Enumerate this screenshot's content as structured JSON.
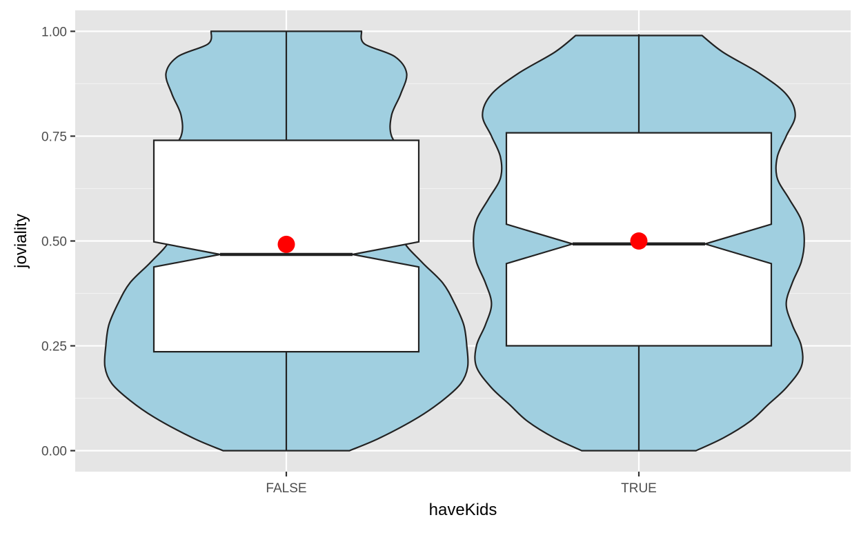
{
  "chart_data": {
    "type": "violin",
    "xlabel": "haveKids",
    "ylabel": "joviality",
    "categories": [
      "FALSE",
      "TRUE"
    ],
    "ylim": [
      -0.05,
      1.05
    ],
    "yticks": [
      0.0,
      0.25,
      0.5,
      0.75,
      1.0
    ],
    "ytick_labels": [
      "0.00",
      "0.25",
      "0.50",
      "0.75",
      "1.00"
    ],
    "grid": true,
    "colors": {
      "panel_bg": "#e5e5e5",
      "grid_major": "#ffffff",
      "grid_minor": "#f2f2f2",
      "violin_fill": "#a0cfe0",
      "outline": "#222222",
      "box_fill": "#ffffff",
      "mean_point": "#ff0000",
      "tick_text": "#4d4d4d",
      "axis_title": "#000000"
    },
    "groups": [
      {
        "label": "FALSE",
        "min": 0.0,
        "max": 1.0,
        "q1": 0.236,
        "median": 0.468,
        "q3": 0.74,
        "notch_lower": 0.438,
        "notch_upper": 0.498,
        "mean": 0.492,
        "density_halfwidth": [
          [
            0.0,
            0.21
          ],
          [
            0.03,
            0.31
          ],
          [
            0.08,
            0.44
          ],
          [
            0.12,
            0.52
          ],
          [
            0.16,
            0.58
          ],
          [
            0.2,
            0.603
          ],
          [
            0.25,
            0.6
          ],
          [
            0.3,
            0.59
          ],
          [
            0.35,
            0.56
          ],
          [
            0.4,
            0.52
          ],
          [
            0.45,
            0.45
          ],
          [
            0.5,
            0.39
          ],
          [
            0.55,
            0.39
          ],
          [
            0.6,
            0.41
          ],
          [
            0.65,
            0.43
          ],
          [
            0.7,
            0.4
          ],
          [
            0.75,
            0.35
          ],
          [
            0.8,
            0.35
          ],
          [
            0.85,
            0.38
          ],
          [
            0.9,
            0.4
          ],
          [
            0.94,
            0.36
          ],
          [
            0.97,
            0.26
          ],
          [
            1.0,
            0.25
          ]
        ]
      },
      {
        "label": "TRUE",
        "min": 0.0,
        "max": 0.993,
        "q1": 0.25,
        "median": 0.493,
        "q3": 0.758,
        "notch_lower": 0.446,
        "notch_upper": 0.54,
        "mean": 0.5,
        "density_halfwidth": [
          [
            0.0,
            0.19
          ],
          [
            0.03,
            0.28
          ],
          [
            0.07,
            0.37
          ],
          [
            0.11,
            0.43
          ],
          [
            0.15,
            0.49
          ],
          [
            0.2,
            0.54
          ],
          [
            0.25,
            0.54
          ],
          [
            0.3,
            0.51
          ],
          [
            0.35,
            0.49
          ],
          [
            0.4,
            0.51
          ],
          [
            0.45,
            0.54
          ],
          [
            0.5,
            0.55
          ],
          [
            0.55,
            0.54
          ],
          [
            0.6,
            0.5
          ],
          [
            0.65,
            0.46
          ],
          [
            0.7,
            0.46
          ],
          [
            0.75,
            0.49
          ],
          [
            0.8,
            0.52
          ],
          [
            0.85,
            0.49
          ],
          [
            0.9,
            0.4
          ],
          [
            0.95,
            0.28
          ],
          [
            0.99,
            0.21
          ]
        ]
      }
    ]
  }
}
